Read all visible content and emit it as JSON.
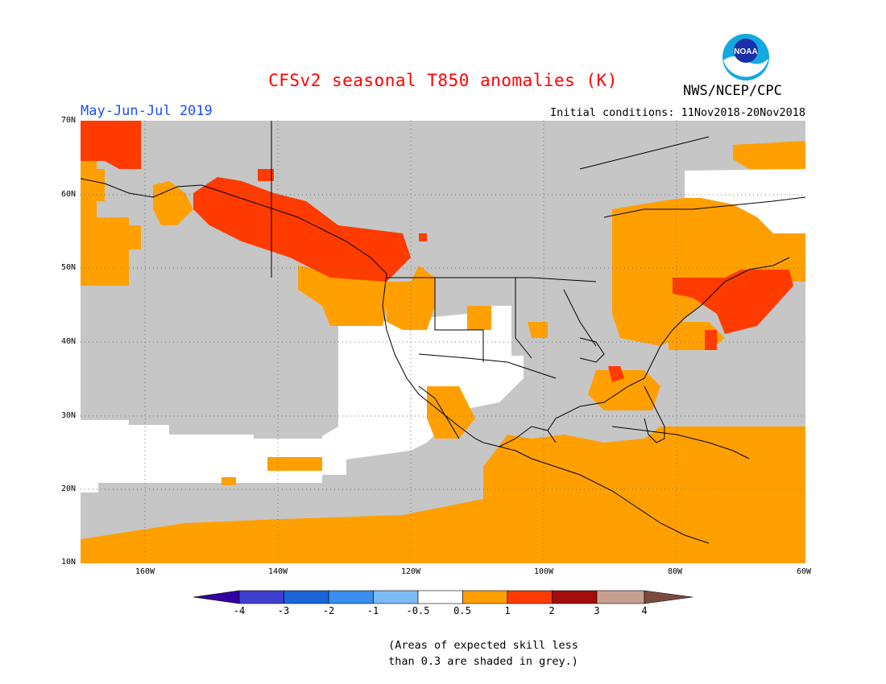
{
  "title": "CFSv2 seasonal T850 anomalies (K)",
  "period": "May-Jun-Jul 2019",
  "initial_conditions": "Initial conditions: 11Nov2018-20Nov2018",
  "organization": "NWS/NCEP/CPC",
  "logo_text": "NOAA",
  "latitude_labels": [
    "70N",
    "60N",
    "50N",
    "40N",
    "30N",
    "20N",
    "10N"
  ],
  "longitude_labels": [
    "160W",
    "140W",
    "120W",
    "100W",
    "80W",
    "60W"
  ],
  "colorbar": {
    "ticks": [
      "-4",
      "-3",
      "-2",
      "-1",
      "-0.5",
      "0.5",
      "1",
      "2",
      "3",
      "4"
    ],
    "colors": [
      "#3300a0",
      "#4040d0",
      "#1a66d9",
      "#3a8ef0",
      "#7bbcf7",
      "#ffffff",
      "#ffa000",
      "#ff3b00",
      "#a50d0d",
      "#c8a090",
      "#7b4b3f"
    ]
  },
  "shading_colors": {
    "grey_low_skill": "#c6c6c6",
    "near_normal": "#ffffff",
    "above_0_5": "#ffa000",
    "above_1": "#ff3b00"
  },
  "note_line1": "(Areas of expected skill less",
  "note_line2": "than 0.3 are shaded in grey.)"
}
